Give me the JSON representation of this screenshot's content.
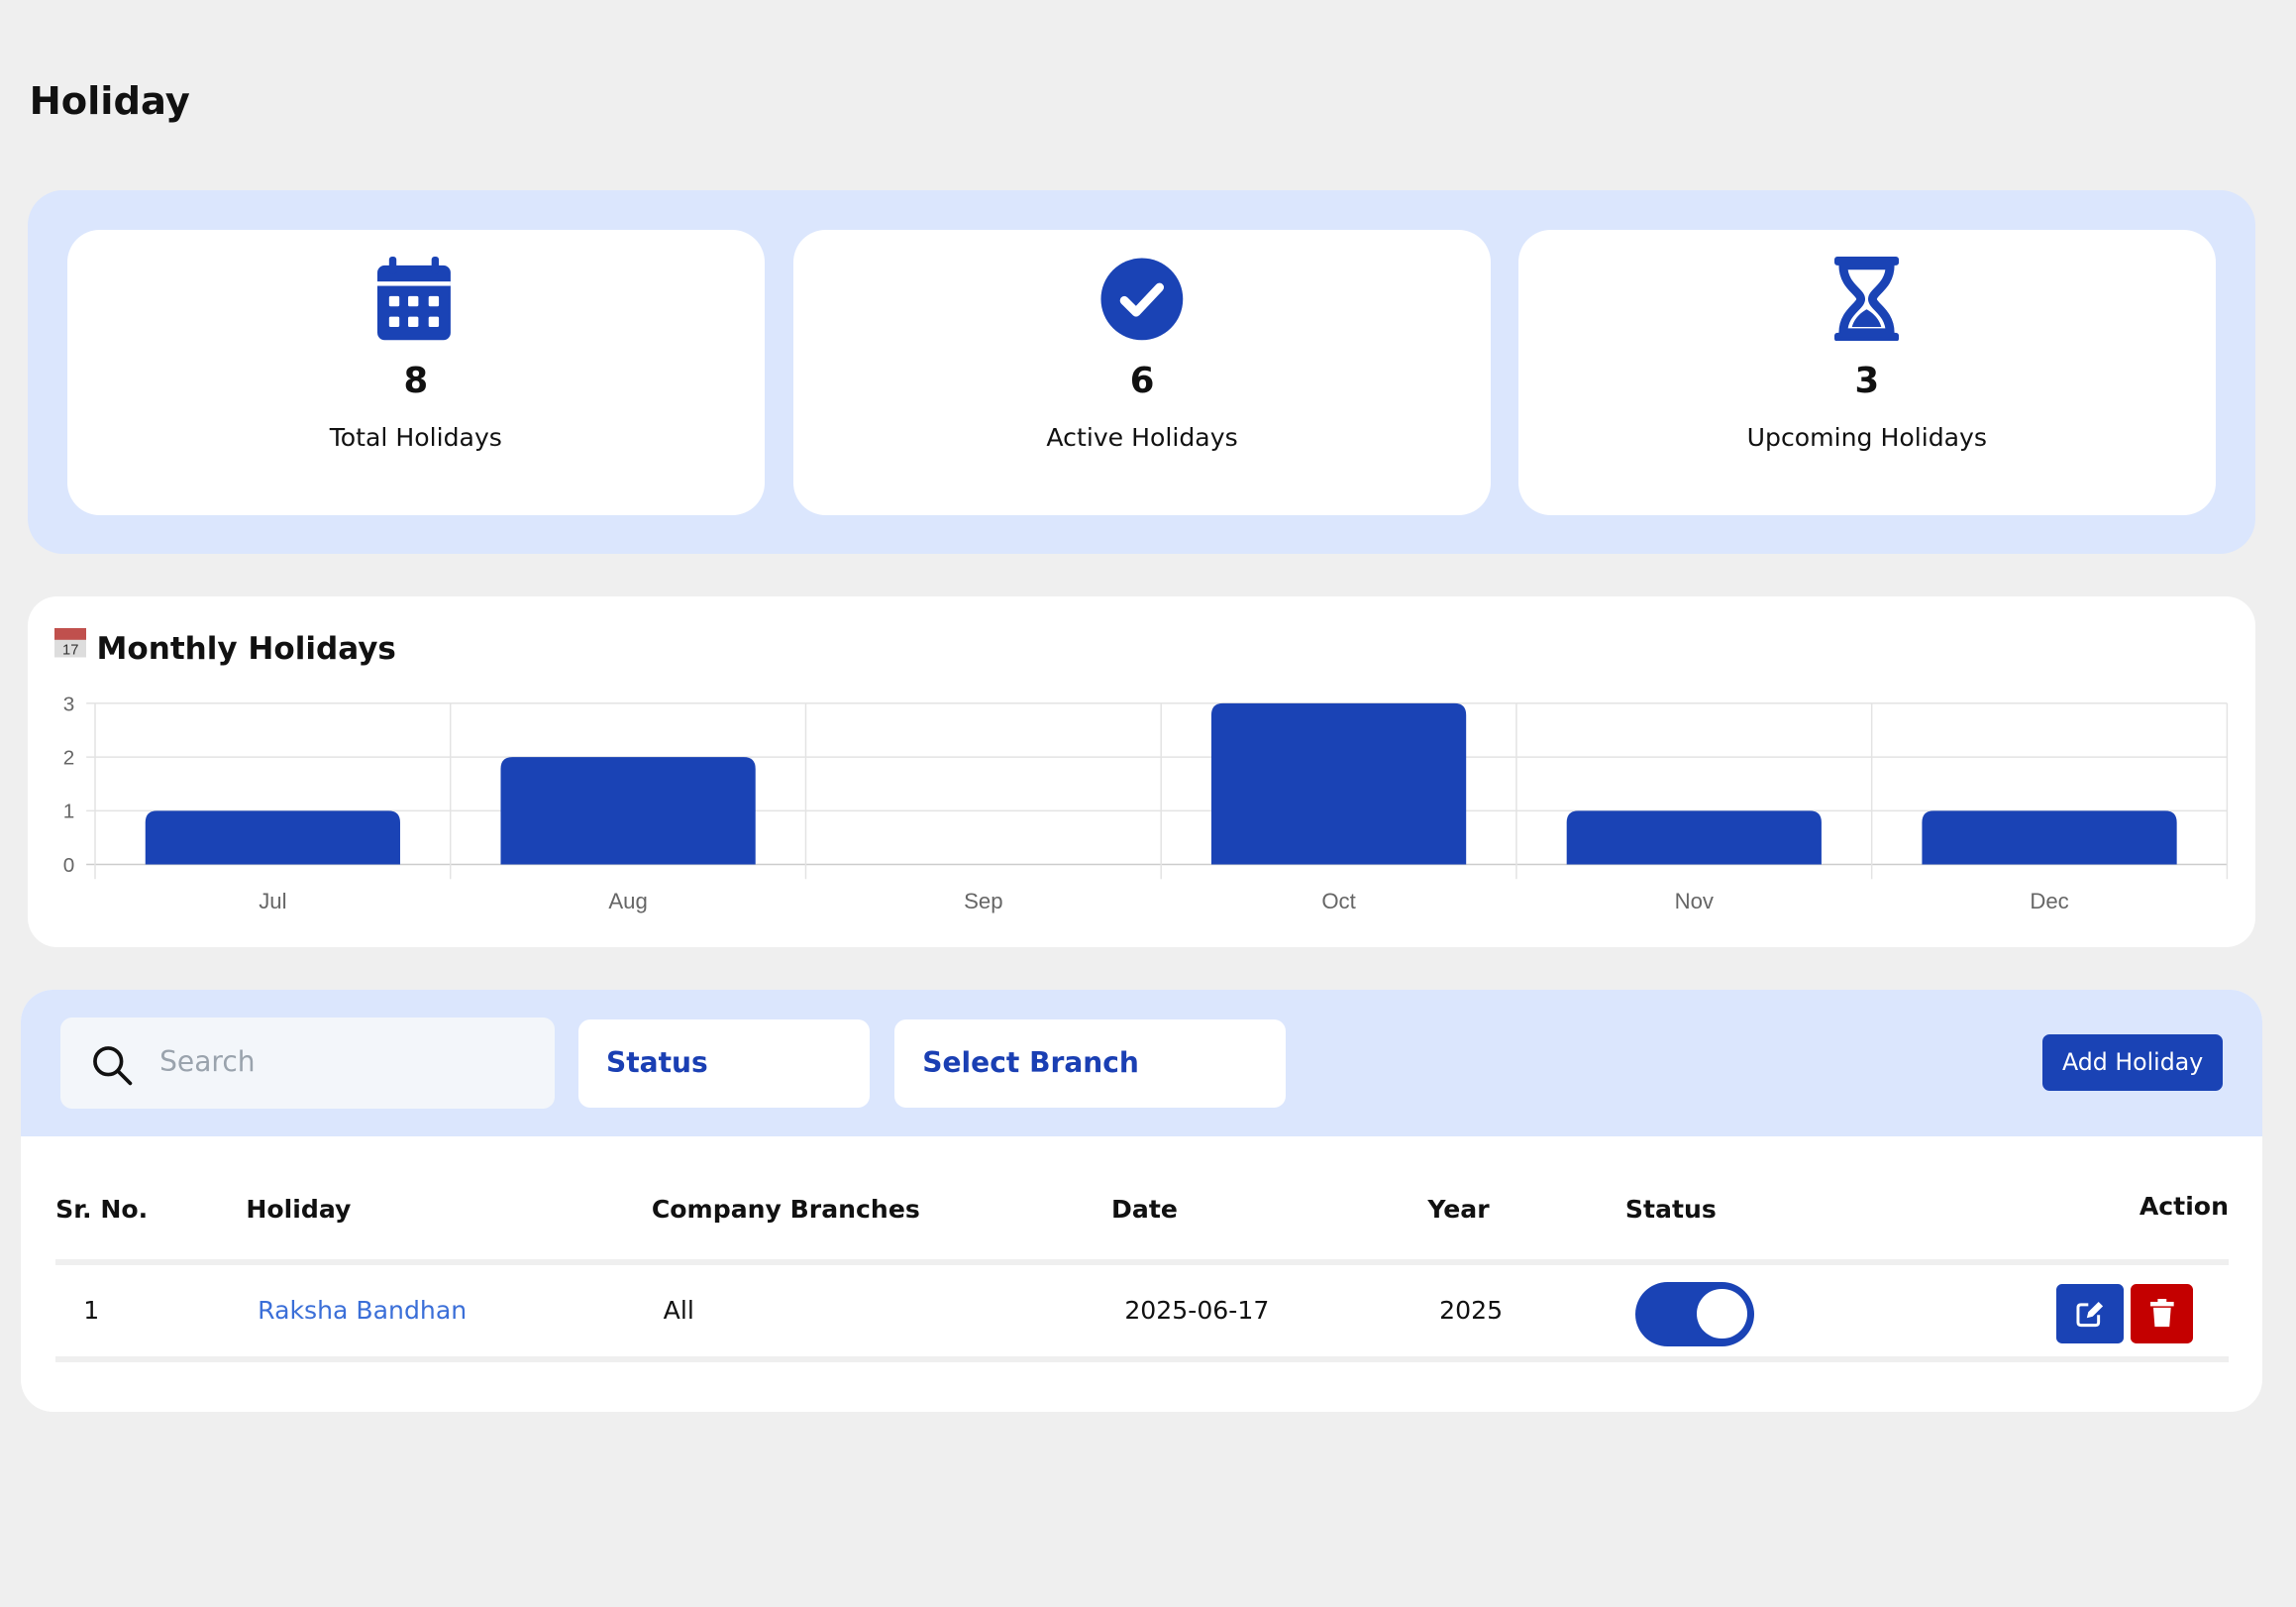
{
  "page": {
    "title": "Holiday"
  },
  "stats": [
    {
      "icon": "calendar-icon",
      "value": "8",
      "label": "Total Holidays"
    },
    {
      "icon": "check-circle-icon",
      "value": "6",
      "label": "Active Holidays"
    },
    {
      "icon": "hourglass-icon",
      "value": "3",
      "label": "Upcoming Holidays"
    }
  ],
  "chart_data": {
    "type": "bar",
    "title": "Monthly Holidays",
    "categories": [
      "Jul",
      "Aug",
      "Sep",
      "Oct",
      "Nov",
      "Dec"
    ],
    "values": [
      1,
      2,
      0,
      3,
      1,
      1
    ],
    "ylim": [
      0,
      3
    ],
    "yticks": [
      "0",
      "1",
      "2",
      "3"
    ],
    "grid": true,
    "color": "#1a43b5"
  },
  "toolbar": {
    "search_placeholder": "Search",
    "status_label": "Status",
    "branch_label": "Select Branch",
    "add_label": "Add Holiday"
  },
  "table": {
    "headers": [
      "Sr. No.",
      "Holiday",
      "Company Branches",
      "Date",
      "Year",
      "Status",
      "Action"
    ],
    "rows": [
      {
        "sr": "1",
        "holiday": "Raksha Bandhan",
        "branches": "All",
        "date": "2025-06-17",
        "year": "2025",
        "status": true
      }
    ]
  },
  "colors": {
    "accent": "#1a43b5",
    "panel": "#dbe6fd",
    "danger": "#c40000",
    "link": "#3b6fd8"
  }
}
